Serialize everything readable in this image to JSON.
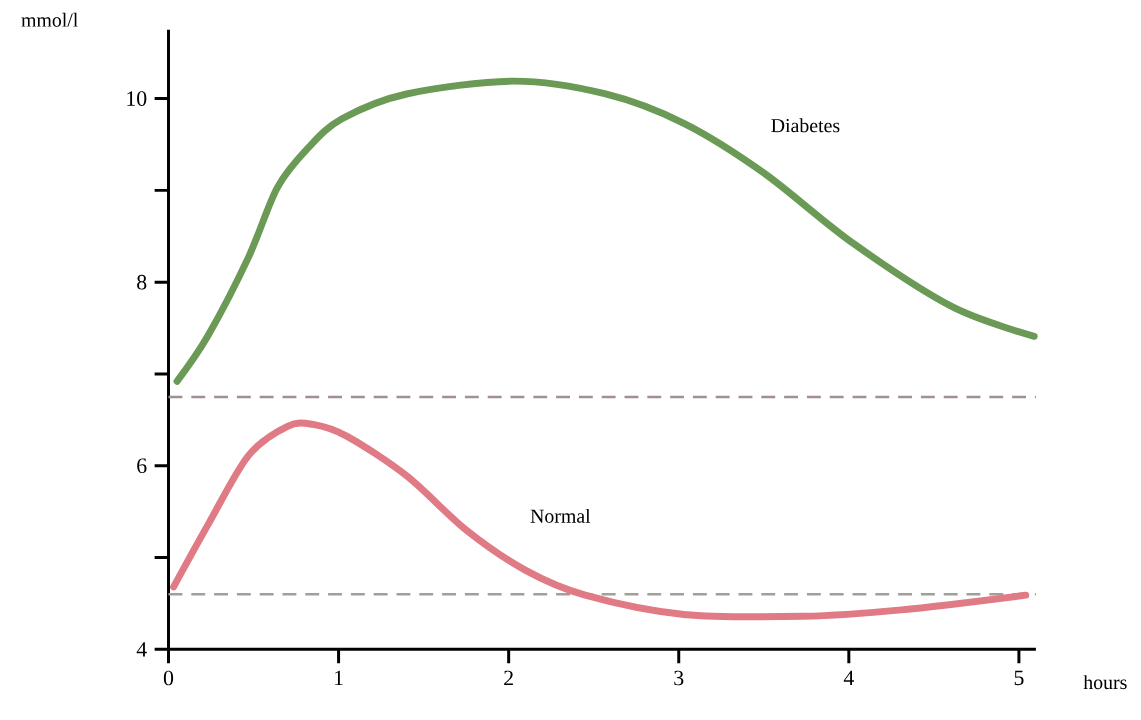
{
  "chart_data": {
    "type": "line",
    "xlabel": "hours",
    "ylabel": "mmol/l",
    "x": [
      0.05,
      0.23,
      0.47,
      0.64,
      0.82,
      1.02,
      1.4,
      2.03,
      2.57,
      3.03,
      3.5,
      4.02,
      4.61,
      5.09
    ],
    "series": [
      {
        "name": "Diabetes",
        "color": "#6a9a55",
        "values": [
          6.92,
          7.41,
          8.27,
          9.03,
          9.46,
          9.78,
          10.05,
          10.19,
          10.05,
          9.73,
          9.19,
          8.43,
          7.73,
          7.41
        ]
      },
      {
        "name": "Normal",
        "color": "#e07a85",
        "x": [
          0.03,
          0.23,
          0.47,
          0.7,
          0.85,
          1.05,
          1.4,
          1.75,
          2.1,
          2.45,
          3.03,
          3.73,
          4.31,
          5.04
        ],
        "values": [
          4.68,
          5.35,
          6.11,
          6.43,
          6.45,
          6.32,
          5.89,
          5.3,
          4.86,
          4.59,
          4.38,
          4.36,
          4.43,
          4.59
        ]
      }
    ],
    "xlim": [
      0,
      5.1
    ],
    "ylim": [
      4,
      10.75
    ],
    "xticks": [
      0,
      1,
      2,
      3,
      4,
      5
    ],
    "yticks": [
      4,
      {
        "value": 5,
        "label": null
      },
      6,
      {
        "value": 7,
        "label": null
      },
      8,
      {
        "value": 9,
        "label": null
      },
      10
    ],
    "ref_lines": [
      {
        "axis": "y",
        "value": 6.75,
        "color": "#a09090",
        "line_style": "dashed"
      },
      {
        "axis": "y",
        "value": 4.6,
        "color": "#a0a098",
        "line_style": "dashed"
      }
    ],
    "marker": "none",
    "line_style": "solid"
  }
}
